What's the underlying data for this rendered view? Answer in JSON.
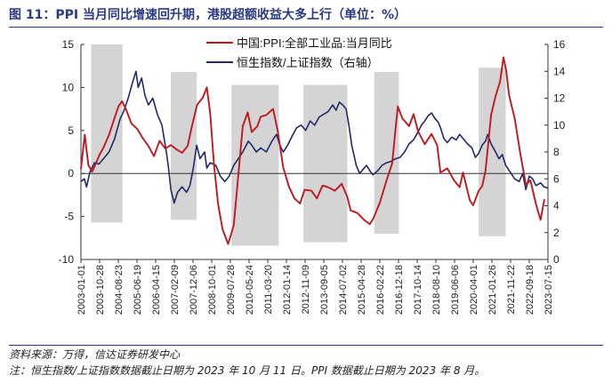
{
  "figure": {
    "title": "图 11：PPI 当月同比增速回升期，港股超额收益大多上行（单位：%）",
    "source": "资料来源：万得，信达证券研发中心",
    "note": "注：恒生指数/上证指数数据截止日期为 2023 年 10 月 11 日。PPI 数据截止日期为 2023 年 8 月。"
  },
  "colors": {
    "ppi": "#c0181e",
    "ratio": "#1f2a66",
    "shade": "#d4d4d4",
    "title": "#2a3a80",
    "axis": "#333333"
  },
  "chart_data": {
    "type": "line",
    "left_axis": {
      "ylim": [
        -10,
        15
      ],
      "ticks": [
        "15",
        "10",
        "5",
        "0",
        "-5",
        "-10"
      ]
    },
    "right_axis": {
      "ylim": [
        0,
        16
      ],
      "ticks": [
        "16",
        "14",
        "12",
        "10",
        "8",
        "6",
        "4",
        "2",
        "0"
      ]
    },
    "x_tick_labels": [
      "2003-01-01",
      "2003-10-28",
      "2004-08-23",
      "2005-06-19",
      "2006-04-15",
      "2007-02-09",
      "2007-12-06",
      "2008-10-01",
      "2009-07-28",
      "2010-05-24",
      "2011-03-20",
      "2012-01-14",
      "2012-11-09",
      "2013-09-05",
      "2014-07-02",
      "2015-04-28",
      "2016-02-22",
      "2016-12-18",
      "2017-10-14",
      "2018-08-10",
      "2019-06-06",
      "2020-04-01",
      "2021-01-26",
      "2021-11-22",
      "2022-09-18",
      "2023-07-15"
    ],
    "x_range": [
      2003.0,
      2023.78
    ],
    "shaded_periods": [
      {
        "start": 2003.45,
        "end": 2004.85,
        "y_top": 15,
        "y_bottom": -5.7
      },
      {
        "start": 2007.0,
        "end": 2008.15,
        "y_top": 11.8,
        "y_bottom": -5.4
      },
      {
        "start": 2009.7,
        "end": 2011.8,
        "y_top": 10.3,
        "y_bottom": -8.4
      },
      {
        "start": 2012.9,
        "end": 2014.85,
        "y_top": 10.3,
        "y_bottom": -8.0
      },
      {
        "start": 2016.05,
        "end": 2017.15,
        "y_top": 11.8,
        "y_bottom": -7.0
      },
      {
        "start": 2020.7,
        "end": 2021.9,
        "y_top": 12.3,
        "y_bottom": -7.3
      }
    ],
    "series": [
      {
        "name": "中国:PPI:全部工业品:当月同比",
        "axis": "left",
        "points": [
          [
            2003.0,
            0.5
          ],
          [
            2003.17,
            4.5
          ],
          [
            2003.33,
            1.0
          ],
          [
            2003.5,
            0.2
          ],
          [
            2003.67,
            1.2
          ],
          [
            2003.83,
            2.2
          ],
          [
            2004.0,
            3.0
          ],
          [
            2004.25,
            4.5
          ],
          [
            2004.5,
            6.5
          ],
          [
            2004.67,
            7.8
          ],
          [
            2004.83,
            8.4
          ],
          [
            2005.0,
            7.5
          ],
          [
            2005.25,
            5.8
          ],
          [
            2005.5,
            5.2
          ],
          [
            2005.75,
            4.1
          ],
          [
            2006.0,
            3.2
          ],
          [
            2006.25,
            2.0
          ],
          [
            2006.5,
            3.8
          ],
          [
            2006.75,
            2.9
          ],
          [
            2007.0,
            3.3
          ],
          [
            2007.25,
            2.8
          ],
          [
            2007.5,
            2.4
          ],
          [
            2007.75,
            3.2
          ],
          [
            2007.92,
            5.3
          ],
          [
            2008.17,
            8.0
          ],
          [
            2008.42,
            8.8
          ],
          [
            2008.6,
            10.0
          ],
          [
            2008.75,
            7.0
          ],
          [
            2008.92,
            1.0
          ],
          [
            2009.1,
            -3.5
          ],
          [
            2009.3,
            -6.5
          ],
          [
            2009.55,
            -8.2
          ],
          [
            2009.8,
            -6.0
          ],
          [
            2009.95,
            -1.7
          ],
          [
            2010.2,
            5.5
          ],
          [
            2010.42,
            7.1
          ],
          [
            2010.6,
            4.8
          ],
          [
            2010.85,
            5.5
          ],
          [
            2011.0,
            6.6
          ],
          [
            2011.25,
            6.8
          ],
          [
            2011.55,
            7.5
          ],
          [
            2011.75,
            5.0
          ],
          [
            2012.0,
            0.7
          ],
          [
            2012.25,
            -1.5
          ],
          [
            2012.5,
            -2.9
          ],
          [
            2012.75,
            -3.5
          ],
          [
            2012.95,
            -1.9
          ],
          [
            2013.25,
            -2.0
          ],
          [
            2013.5,
            -2.9
          ],
          [
            2013.75,
            -1.4
          ],
          [
            2014.0,
            -1.6
          ],
          [
            2014.3,
            -2.0
          ],
          [
            2014.6,
            -1.2
          ],
          [
            2014.85,
            -2.7
          ],
          [
            2015.0,
            -4.3
          ],
          [
            2015.3,
            -4.6
          ],
          [
            2015.6,
            -5.4
          ],
          [
            2015.85,
            -5.9
          ],
          [
            2016.0,
            -5.3
          ],
          [
            2016.3,
            -3.4
          ],
          [
            2016.6,
            -0.8
          ],
          [
            2016.85,
            1.2
          ],
          [
            2017.1,
            7.8
          ],
          [
            2017.3,
            6.4
          ],
          [
            2017.6,
            5.5
          ],
          [
            2017.8,
            6.9
          ],
          [
            2018.0,
            4.9
          ],
          [
            2018.3,
            3.4
          ],
          [
            2018.6,
            4.6
          ],
          [
            2018.85,
            3.3
          ],
          [
            2019.0,
            0.1
          ],
          [
            2019.3,
            0.6
          ],
          [
            2019.6,
            -0.8
          ],
          [
            2019.85,
            -1.6
          ],
          [
            2020.0,
            0.1
          ],
          [
            2020.3,
            -3.1
          ],
          [
            2020.45,
            -3.7
          ],
          [
            2020.7,
            -2.0
          ],
          [
            2020.85,
            -1.5
          ],
          [
            2021.0,
            0.3
          ],
          [
            2021.25,
            6.8
          ],
          [
            2021.45,
            9.0
          ],
          [
            2021.65,
            10.7
          ],
          [
            2021.8,
            13.5
          ],
          [
            2021.92,
            12.0
          ],
          [
            2022.05,
            9.1
          ],
          [
            2022.3,
            6.4
          ],
          [
            2022.55,
            2.3
          ],
          [
            2022.8,
            -1.3
          ],
          [
            2023.0,
            -0.8
          ],
          [
            2023.25,
            -3.6
          ],
          [
            2023.45,
            -5.4
          ],
          [
            2023.62,
            -3.0
          ]
        ]
      },
      {
        "name": "恒生指数/上证指数（右轴）",
        "axis": "right",
        "points": [
          [
            2003.0,
            5.8
          ],
          [
            2003.15,
            6.0
          ],
          [
            2003.25,
            5.4
          ],
          [
            2003.4,
            6.5
          ],
          [
            2003.6,
            7.2
          ],
          [
            2003.8,
            7.1
          ],
          [
            2004.0,
            7.5
          ],
          [
            2004.25,
            8.0
          ],
          [
            2004.5,
            9.0
          ],
          [
            2004.75,
            10.5
          ],
          [
            2004.9,
            11.0
          ],
          [
            2005.1,
            12.0
          ],
          [
            2005.3,
            13.2
          ],
          [
            2005.45,
            14.0
          ],
          [
            2005.55,
            12.8
          ],
          [
            2005.7,
            13.5
          ],
          [
            2005.85,
            12.2
          ],
          [
            2006.0,
            11.5
          ],
          [
            2006.2,
            12.0
          ],
          [
            2006.4,
            10.8
          ],
          [
            2006.6,
            10.0
          ],
          [
            2006.8,
            8.0
          ],
          [
            2006.9,
            6.8
          ],
          [
            2007.0,
            5.2
          ],
          [
            2007.15,
            4.2
          ],
          [
            2007.3,
            5.0
          ],
          [
            2007.5,
            5.4
          ],
          [
            2007.7,
            5.0
          ],
          [
            2007.85,
            5.5
          ],
          [
            2008.0,
            6.8
          ],
          [
            2008.15,
            8.5
          ],
          [
            2008.3,
            7.5
          ],
          [
            2008.5,
            8.0
          ],
          [
            2008.6,
            6.8
          ],
          [
            2008.75,
            7.2
          ],
          [
            2009.0,
            7.0
          ],
          [
            2009.2,
            6.2
          ],
          [
            2009.4,
            5.8
          ],
          [
            2009.6,
            6.2
          ],
          [
            2009.8,
            7.0
          ],
          [
            2010.0,
            7.5
          ],
          [
            2010.2,
            8.0
          ],
          [
            2010.45,
            8.8
          ],
          [
            2010.6,
            8.5
          ],
          [
            2010.8,
            8.0
          ],
          [
            2011.0,
            8.3
          ],
          [
            2011.25,
            8.0
          ],
          [
            2011.5,
            8.8
          ],
          [
            2011.7,
            9.3
          ],
          [
            2011.85,
            8.5
          ],
          [
            2012.0,
            8.0
          ],
          [
            2012.2,
            8.5
          ],
          [
            2012.4,
            9.2
          ],
          [
            2012.6,
            9.8
          ],
          [
            2012.8,
            10.0
          ],
          [
            2013.0,
            9.6
          ],
          [
            2013.2,
            10.3
          ],
          [
            2013.4,
            10.0
          ],
          [
            2013.6,
            10.6
          ],
          [
            2013.8,
            10.8
          ],
          [
            2014.0,
            11.0
          ],
          [
            2014.2,
            11.5
          ],
          [
            2014.35,
            11.1
          ],
          [
            2014.5,
            11.7
          ],
          [
            2014.65,
            11.5
          ],
          [
            2014.8,
            11.2
          ],
          [
            2014.92,
            10.0
          ],
          [
            2015.05,
            8.5
          ],
          [
            2015.25,
            7.0
          ],
          [
            2015.4,
            6.4
          ],
          [
            2015.55,
            6.7
          ],
          [
            2015.7,
            7.0
          ],
          [
            2015.9,
            6.5
          ],
          [
            2016.0,
            6.3
          ],
          [
            2016.2,
            6.6
          ],
          [
            2016.4,
            7.0
          ],
          [
            2016.6,
            7.2
          ],
          [
            2016.8,
            7.3
          ],
          [
            2017.0,
            7.5
          ],
          [
            2017.2,
            7.6
          ],
          [
            2017.4,
            8.0
          ],
          [
            2017.6,
            8.6
          ],
          [
            2017.8,
            8.9
          ],
          [
            2018.0,
            9.5
          ],
          [
            2018.15,
            10.0
          ],
          [
            2018.3,
            10.3
          ],
          [
            2018.45,
            10.7
          ],
          [
            2018.6,
            10.9
          ],
          [
            2018.75,
            10.5
          ],
          [
            2018.9,
            10.2
          ],
          [
            2019.0,
            9.8
          ],
          [
            2019.15,
            9.0
          ],
          [
            2019.3,
            8.7
          ],
          [
            2019.5,
            9.1
          ],
          [
            2019.7,
            8.9
          ],
          [
            2019.85,
            9.3
          ],
          [
            2020.0,
            9.0
          ],
          [
            2020.2,
            8.6
          ],
          [
            2020.4,
            8.3
          ],
          [
            2020.55,
            7.6
          ],
          [
            2020.7,
            7.9
          ],
          [
            2020.85,
            8.5
          ],
          [
            2021.0,
            8.8
          ],
          [
            2021.1,
            9.3
          ],
          [
            2021.25,
            8.6
          ],
          [
            2021.45,
            8.0
          ],
          [
            2021.6,
            7.5
          ],
          [
            2021.75,
            7.8
          ],
          [
            2021.9,
            7.0
          ],
          [
            2022.1,
            6.5
          ],
          [
            2022.3,
            6.0
          ],
          [
            2022.5,
            5.8
          ],
          [
            2022.65,
            6.4
          ],
          [
            2022.8,
            5.2
          ],
          [
            2022.95,
            6.2
          ],
          [
            2023.1,
            6.0
          ],
          [
            2023.25,
            5.5
          ],
          [
            2023.45,
            5.7
          ],
          [
            2023.6,
            5.4
          ],
          [
            2023.78,
            5.3
          ]
        ]
      }
    ]
  }
}
